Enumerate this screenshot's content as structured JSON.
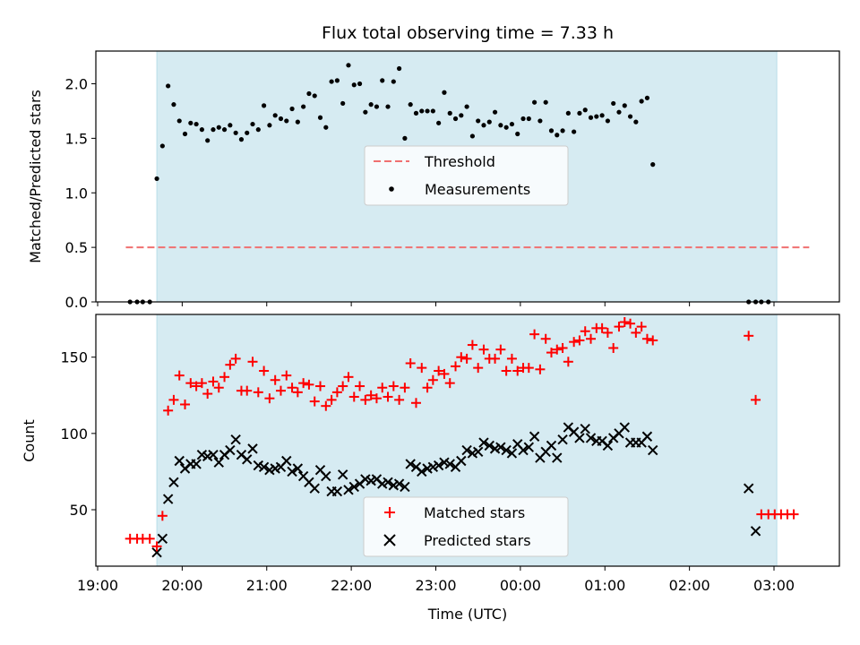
{
  "chart_data": [
    {
      "type": "scatter",
      "title": "Flux total observing time = 7.33 h",
      "ylabel": "Matched/Predicted stars",
      "ylim": [
        0,
        2.3
      ],
      "yticks": [
        "0.0",
        "0.5",
        "1.0",
        "1.5",
        "2.0"
      ],
      "shaded_span": [
        "19:42",
        "03:02"
      ],
      "legend": {
        "placement": "center",
        "entries": [
          "Threshold",
          "Measurements"
        ]
      },
      "threshold": {
        "name": "Threshold",
        "value": 0.5,
        "x_range": [
          "19:20",
          "03:25"
        ],
        "color": "#f07070"
      },
      "series": [
        {
          "name": "Measurements",
          "marker": "dot",
          "color": "#000000",
          "points": [
            [
              "19:23",
              0
            ],
            [
              "19:28",
              0
            ],
            [
              "19:32",
              0
            ],
            [
              "19:37",
              0
            ],
            [
              "19:42",
              1.13
            ],
            [
              "19:46",
              1.43
            ],
            [
              "19:50",
              1.98
            ],
            [
              "19:54",
              1.81
            ],
            [
              "19:58",
              1.66
            ],
            [
              "20:02",
              1.54
            ],
            [
              "20:06",
              1.64
            ],
            [
              "20:10",
              1.63
            ],
            [
              "20:14",
              1.58
            ],
            [
              "20:18",
              1.48
            ],
            [
              "20:22",
              1.58
            ],
            [
              "20:26",
              1.6
            ],
            [
              "20:30",
              1.58
            ],
            [
              "20:34",
              1.62
            ],
            [
              "20:38",
              1.55
            ],
            [
              "20:42",
              1.49
            ],
            [
              "20:46",
              1.55
            ],
            [
              "20:50",
              1.63
            ],
            [
              "20:54",
              1.58
            ],
            [
              "20:58",
              1.8
            ],
            [
              "21:02",
              1.62
            ],
            [
              "21:06",
              1.71
            ],
            [
              "21:10",
              1.68
            ],
            [
              "21:14",
              1.66
            ],
            [
              "21:18",
              1.77
            ],
            [
              "21:22",
              1.65
            ],
            [
              "21:26",
              1.79
            ],
            [
              "21:30",
              1.91
            ],
            [
              "21:34",
              1.89
            ],
            [
              "21:38",
              1.69
            ],
            [
              "21:42",
              1.6
            ],
            [
              "21:46",
              2.02
            ],
            [
              "21:50",
              2.03
            ],
            [
              "21:54",
              1.82
            ],
            [
              "21:58",
              2.17
            ],
            [
              "22:02",
              1.99
            ],
            [
              "22:06",
              2.0
            ],
            [
              "22:10",
              1.74
            ],
            [
              "22:14",
              1.81
            ],
            [
              "22:18",
              1.79
            ],
            [
              "22:22",
              2.03
            ],
            [
              "22:26",
              1.79
            ],
            [
              "22:30",
              2.02
            ],
            [
              "22:34",
              2.14
            ],
            [
              "22:38",
              1.5
            ],
            [
              "22:42",
              1.81
            ],
            [
              "22:46",
              1.73
            ],
            [
              "22:50",
              1.75
            ],
            [
              "22:54",
              1.75
            ],
            [
              "22:58",
              1.75
            ],
            [
              "23:02",
              1.64
            ],
            [
              "23:06",
              1.92
            ],
            [
              "23:10",
              1.73
            ],
            [
              "23:14",
              1.68
            ],
            [
              "23:18",
              1.71
            ],
            [
              "23:22",
              1.79
            ],
            [
              "23:26",
              1.52
            ],
            [
              "23:30",
              1.66
            ],
            [
              "23:34",
              1.62
            ],
            [
              "23:38",
              1.65
            ],
            [
              "23:42",
              1.74
            ],
            [
              "23:46",
              1.62
            ],
            [
              "23:50",
              1.6
            ],
            [
              "23:54",
              1.63
            ],
            [
              "23:58",
              1.54
            ],
            [
              "00:02",
              1.68
            ],
            [
              "00:06",
              1.68
            ],
            [
              "00:10",
              1.83
            ],
            [
              "00:14",
              1.66
            ],
            [
              "00:18",
              1.83
            ],
            [
              "00:22",
              1.57
            ],
            [
              "00:26",
              1.53
            ],
            [
              "00:30",
              1.57
            ],
            [
              "00:34",
              1.73
            ],
            [
              "00:38",
              1.56
            ],
            [
              "00:42",
              1.73
            ],
            [
              "00:46",
              1.76
            ],
            [
              "00:50",
              1.69
            ],
            [
              "00:54",
              1.7
            ],
            [
              "00:58",
              1.71
            ],
            [
              "01:02",
              1.66
            ],
            [
              "01:06",
              1.82
            ],
            [
              "01:10",
              1.74
            ],
            [
              "01:14",
              1.8
            ],
            [
              "01:18",
              1.7
            ],
            [
              "01:22",
              1.65
            ],
            [
              "01:26",
              1.84
            ],
            [
              "01:30",
              1.87
            ],
            [
              "01:34",
              1.26
            ],
            [
              "02:42",
              0
            ],
            [
              "02:47",
              0
            ],
            [
              "02:51",
              0
            ],
            [
              "02:56",
              0
            ]
          ]
        }
      ]
    },
    {
      "type": "scatter",
      "ylabel": "Count",
      "xlabel": "Time (UTC)",
      "ylim": [
        13,
        178
      ],
      "yticks": [
        "50",
        "100",
        "150"
      ],
      "xticks": [
        "19:00",
        "20:00",
        "21:00",
        "22:00",
        "23:00",
        "00:00",
        "01:00",
        "02:00",
        "03:00"
      ],
      "shaded_span": [
        "19:42",
        "03:02"
      ],
      "legend": {
        "placement": "lower center",
        "entries": [
          "Matched stars",
          "Predicted stars"
        ]
      },
      "series": [
        {
          "name": "Matched stars",
          "marker": "plus",
          "color": "#ff0000",
          "values": [
            31,
            31,
            31,
            31,
            26,
            46,
            115,
            122,
            138,
            119,
            133,
            131,
            133,
            126,
            134,
            130,
            137,
            145,
            149,
            128,
            128,
            147,
            127,
            141,
            123,
            135,
            128,
            138,
            130,
            127,
            133,
            132,
            121,
            131,
            118,
            122,
            127,
            131,
            137,
            124,
            131,
            122,
            125,
            123,
            130,
            124,
            131,
            122,
            130,
            146,
            120,
            143,
            130,
            135,
            141,
            139,
            133,
            144,
            150,
            149,
            158,
            143,
            155,
            149,
            149,
            155,
            141,
            149,
            141,
            143,
            143,
            165,
            142,
            162,
            153,
            155,
            156,
            147,
            160,
            161,
            167,
            162,
            169,
            169,
            166,
            156,
            170,
            173,
            172,
            166,
            170,
            162,
            161,
            164,
            122,
            47,
            47,
            47,
            47,
            47,
            47
          ]
        },
        {
          "name": "Predicted stars",
          "marker": "cross",
          "color": "#000000",
          "values": [
            null,
            null,
            null,
            null,
            22,
            31,
            57,
            68,
            82,
            77,
            80,
            80,
            86,
            85,
            86,
            81,
            86,
            89,
            96,
            86,
            83,
            90,
            79,
            78,
            76,
            77,
            78,
            82,
            75,
            77,
            72,
            68,
            64,
            76,
            72,
            62,
            62,
            73,
            63,
            65,
            67,
            70,
            69,
            70,
            67,
            68,
            66,
            67,
            65,
            80,
            78,
            75,
            77,
            78,
            79,
            81,
            80,
            78,
            82,
            89,
            87,
            88,
            94,
            92,
            90,
            91,
            89,
            87,
            93,
            89,
            91,
            98,
            84,
            88,
            92,
            84,
            96,
            104,
            101,
            97,
            103,
            97,
            95,
            95,
            92,
            97,
            100,
            104,
            94,
            94,
            94,
            98,
            89,
            64,
            36
          ]
        }
      ]
    }
  ]
}
